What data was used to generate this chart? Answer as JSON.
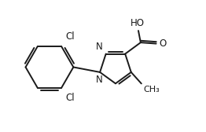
{
  "background_color": "#ffffff",
  "line_color": "#1a1a1a",
  "line_width": 1.4,
  "text_color": "#1a1a1a",
  "font_size": 8.5,
  "figsize": [
    2.62,
    1.68
  ],
  "dpi": 100,
  "xlim": [
    0.0,
    9.0
  ],
  "ylim": [
    0.5,
    6.0
  ]
}
